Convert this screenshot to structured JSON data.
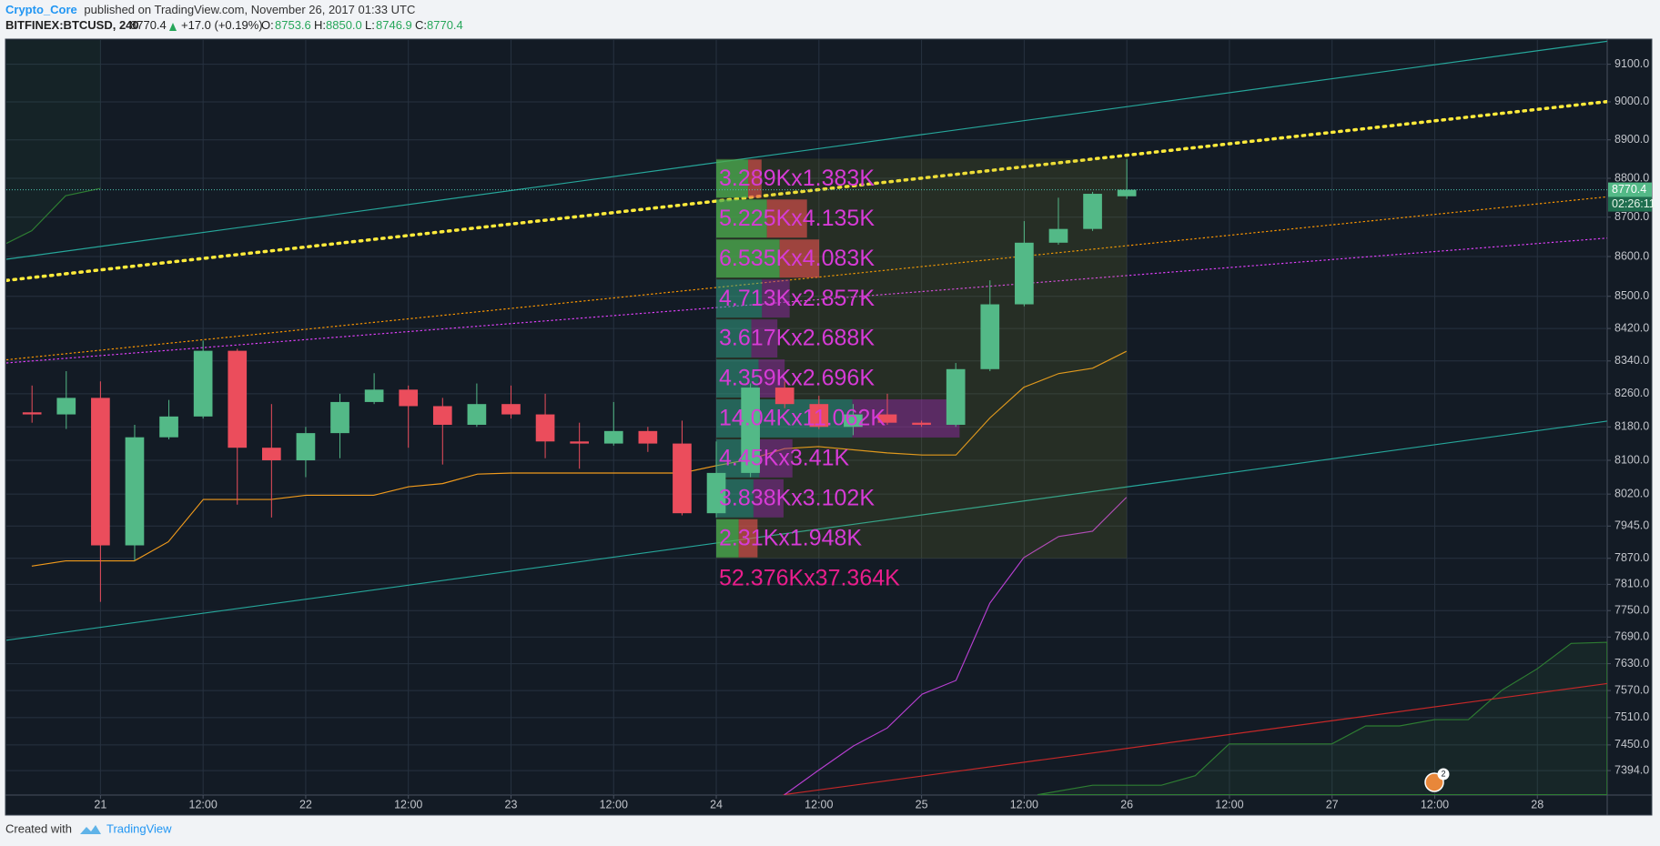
{
  "header": {
    "author": "Crypto_Core",
    "published": "published on TradingView.com, November 26, 2017 01:33 UTC",
    "symbol": "BITFINEX:BTCUSD, 240",
    "change": "+17.0 (+0.19%)",
    "ohlc_names": [
      "O:",
      "H:",
      "L:",
      "C:"
    ],
    "high_label": "8850.0"
  },
  "footer": {
    "created": "Created with",
    "brand": "TradingView"
  },
  "chart_data": {
    "type": "candlestick",
    "log": true,
    "grid": true,
    "up_color": "#53b987",
    "down_color": "#eb4d5c",
    "x": [
      "2017-11-20T16:00",
      "2017-11-20T20:00",
      "2017-11-21T00:00",
      "2017-11-21T04:00",
      "2017-11-21T08:00",
      "2017-11-21T12:00",
      "2017-11-21T16:00",
      "2017-11-21T20:00",
      "2017-11-22T00:00",
      "2017-11-22T04:00",
      "2017-11-22T08:00",
      "2017-11-22T12:00",
      "2017-11-22T16:00",
      "2017-11-22T20:00",
      "2017-11-23T00:00",
      "2017-11-23T04:00",
      "2017-11-23T08:00",
      "2017-11-23T12:00",
      "2017-11-23T16:00",
      "2017-11-23T20:00",
      "2017-11-24T00:00",
      "2017-11-24T04:00",
      "2017-11-24T08:00",
      "2017-11-24T12:00",
      "2017-11-24T16:00",
      "2017-11-24T20:00",
      "2017-11-25T00:00",
      "2017-11-25T04:00",
      "2017-11-25T08:00",
      "2017-11-25T12:00",
      "2017-11-25T16:00",
      "2017-11-25T20:00",
      "2017-11-26T00:00"
    ],
    "open": [
      8215,
      8210,
      8250,
      7900,
      8155,
      8205,
      8365,
      8130,
      8100,
      8165,
      8240,
      8270,
      8230,
      8185,
      8235,
      8210,
      8145,
      8140,
      8170,
      8140,
      7975,
      8070,
      8275,
      8235,
      8180,
      8210,
      8190,
      8185,
      8320,
      8480,
      8635,
      8670,
      8753.6
    ],
    "high": [
      8280,
      8315,
      8290,
      8185,
      8245,
      8390,
      8370,
      8235,
      8180,
      8260,
      8310,
      8280,
      8250,
      8285,
      8280,
      8260,
      8190,
      8240,
      8180,
      8195,
      8145,
      8285,
      8290,
      8255,
      8235,
      8260,
      8195,
      8335,
      8540,
      8690,
      8750,
      8765,
      8850
    ],
    "low": [
      8190,
      8175,
      7770,
      7865,
      8150,
      8200,
      7995,
      7965,
      8060,
      8105,
      8235,
      8130,
      8090,
      8180,
      8200,
      8105,
      8080,
      8135,
      8120,
      7970,
      7965,
      8060,
      8225,
      8175,
      8160,
      8185,
      8180,
      8180,
      8315,
      8475,
      8630,
      8665,
      8746.9
    ],
    "close": [
      8210,
      8250,
      7900,
      8155,
      8205,
      8365,
      8130,
      8100,
      8165,
      8240,
      8270,
      8230,
      8185,
      8235,
      8210,
      8145,
      8140,
      8170,
      8140,
      7975,
      8070,
      8275,
      8235,
      8180,
      8210,
      8190,
      8185,
      8320,
      8480,
      8635,
      8670,
      8760,
      8770.4
    ],
    "ylim": [
      7341,
      9165
    ],
    "yticks": [
      {
        "value": 9100,
        "label": "9100.0"
      },
      {
        "value": 9000,
        "label": "9000.0"
      },
      {
        "value": 8900,
        "label": "8900.0"
      },
      {
        "value": 8800,
        "label": "8800.0"
      },
      {
        "value": 8700,
        "label": "8700.0"
      },
      {
        "value": 8600,
        "label": "8600.0"
      },
      {
        "value": 8500,
        "label": "8500.0"
      },
      {
        "value": 8420,
        "label": "8420.0"
      },
      {
        "value": 8340,
        "label": "8340.0"
      },
      {
        "value": 8260,
        "label": "8260.0"
      },
      {
        "value": 8180,
        "label": "8180.0"
      },
      {
        "value": 8100,
        "label": "8100.0"
      },
      {
        "value": 8020,
        "label": "8020.0"
      },
      {
        "value": 7945,
        "label": "7945.0"
      },
      {
        "value": 7870,
        "label": "7870.0"
      },
      {
        "value": 7810,
        "label": "7810.0"
      },
      {
        "value": 7750,
        "label": "7750.0"
      },
      {
        "value": 7690,
        "label": "7690.0"
      },
      {
        "value": 7630,
        "label": "7630.0"
      },
      {
        "value": 7570,
        "label": "7570.0"
      },
      {
        "value": 7510,
        "label": "7510.0"
      },
      {
        "value": 7450,
        "label": "7450.0"
      },
      {
        "value": 7394,
        "label": "7394.0"
      }
    ],
    "xlim": [
      "2017-11-20T13:00",
      "2017-11-28T08:10"
    ],
    "xticks": [
      {
        "value": "2017-11-21T00:00",
        "label": "21"
      },
      {
        "value": "2017-11-21T12:00",
        "label": "12:00"
      },
      {
        "value": "2017-11-22T00:00",
        "label": "22"
      },
      {
        "value": "2017-11-22T12:00",
        "label": "12:00"
      },
      {
        "value": "2017-11-23T00:00",
        "label": "23"
      },
      {
        "value": "2017-11-23T12:00",
        "label": "12:00"
      },
      {
        "value": "2017-11-24T00:00",
        "label": "24"
      },
      {
        "value": "2017-11-24T12:00",
        "label": "12:00"
      },
      {
        "value": "2017-11-25T00:00",
        "label": "25"
      },
      {
        "value": "2017-11-25T12:00",
        "label": "12:00"
      },
      {
        "value": "2017-11-26T00:00",
        "label": "26"
      },
      {
        "value": "2017-11-26T12:00",
        "label": "12:00"
      },
      {
        "value": "2017-11-27T00:00",
        "label": "27"
      },
      {
        "value": "2017-11-27T12:00",
        "label": "12:00"
      },
      {
        "value": "2017-11-28T00:00",
        "label": "28"
      }
    ],
    "countdown": "02:26:11",
    "badge": "2",
    "profile": {
      "from": "2017-11-24T00:00",
      "to": "2017-11-26T00:00",
      "high": 8851,
      "low": 7870,
      "value_area_rows": [
        3,
        8
      ],
      "rows": [
        {
          "buy": 3.289,
          "sell": 1.383,
          "label": "3.289Kx1.383K"
        },
        {
          "buy": 5.225,
          "sell": 4.135,
          "label": "5.225Kx4.135K"
        },
        {
          "buy": 6.535,
          "sell": 4.083,
          "label": "6.535Kx4.083K"
        },
        {
          "buy": 4.713,
          "sell": 2.857,
          "label": "4.713Kx2.857K"
        },
        {
          "buy": 3.617,
          "sell": 2.688,
          "label": "3.617Kx2.688K"
        },
        {
          "buy": 4.359,
          "sell": 2.696,
          "label": "4.359Kx2.696K"
        },
        {
          "buy": 14.04,
          "sell": 11.062,
          "label": "14.04Kx11.062K"
        },
        {
          "buy": 4.45,
          "sell": 3.41,
          "label": "4.45Kx3.41K"
        },
        {
          "buy": 3.838,
          "sell": 3.102,
          "label": "3.838Kx3.102K"
        },
        {
          "buy": 2.31,
          "sell": 1.948,
          "label": "2.31Kx1.948K"
        }
      ],
      "total": "52.376Kx37.364K"
    }
  }
}
